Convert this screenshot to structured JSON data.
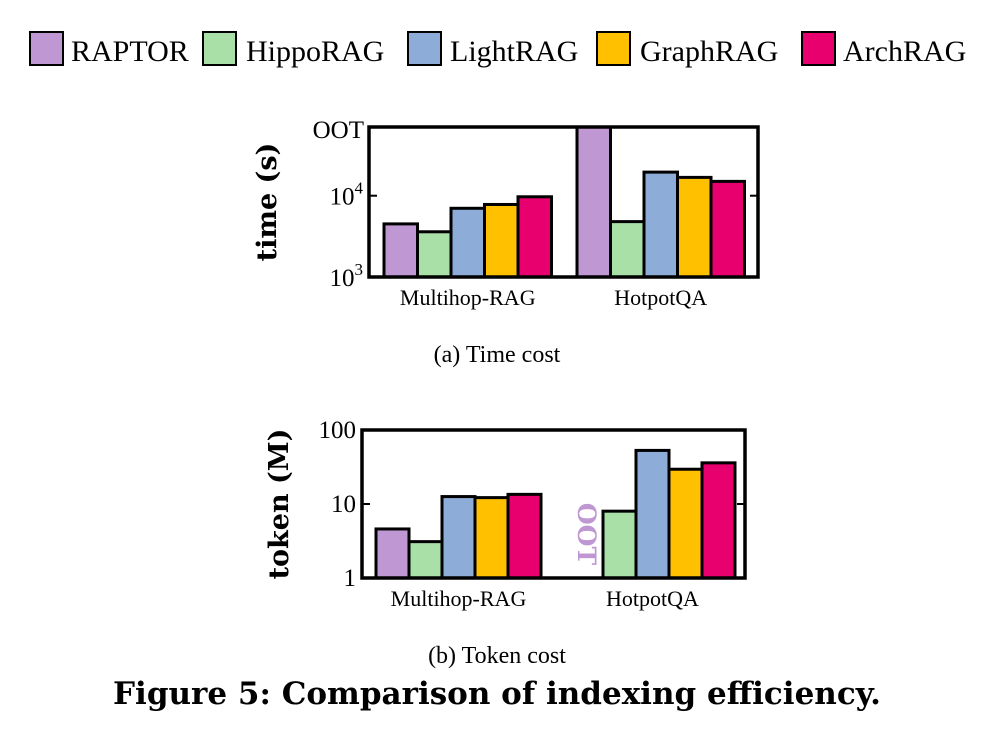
{
  "legend": [
    {
      "name": "RAPTOR",
      "color": "#bf98d3"
    },
    {
      "name": "HippoRAG",
      "color": "#a8e0a8"
    },
    {
      "name": "LightRAG",
      "color": "#8eacd8"
    },
    {
      "name": "GraphRAG",
      "color": "#ffc000"
    },
    {
      "name": "ArchRAG",
      "color": "#e8006e"
    }
  ],
  "chart_data": [
    {
      "id": "time",
      "type": "bar",
      "caption": "(a)  Time cost",
      "ylabel": "time (s)",
      "yscale": "log",
      "ylim": [
        1000,
        70000
      ],
      "yticks": [
        {
          "value": 1000,
          "base": "10",
          "exp": "3"
        },
        {
          "value": 10000,
          "base": "10",
          "exp": "4"
        }
      ],
      "top_label": "OOT",
      "categories": [
        "Multihop-RAG",
        "HotpotQA"
      ],
      "series": [
        {
          "name": "RAPTOR",
          "values": [
            4500,
            null
          ],
          "oot": [
            false,
            true
          ]
        },
        {
          "name": "HippoRAG",
          "values": [
            3600,
            4800
          ]
        },
        {
          "name": "LightRAG",
          "values": [
            7000,
            19500
          ]
        },
        {
          "name": "GraphRAG",
          "values": [
            7800,
            16800
          ]
        },
        {
          "name": "ArchRAG",
          "values": [
            9700,
            15000
          ]
        }
      ]
    },
    {
      "id": "token",
      "type": "bar",
      "caption": "(b)  Token cost",
      "ylabel": "token (M)",
      "yscale": "log",
      "ylim": [
        1,
        100
      ],
      "yticks": [
        {
          "value": 1,
          "label": "1"
        },
        {
          "value": 10,
          "label": "10"
        },
        {
          "value": 100,
          "label": "100"
        }
      ],
      "oot_label": "OOT",
      "categories": [
        "Multihop-RAG",
        "HotpotQA"
      ],
      "series": [
        {
          "name": "RAPTOR",
          "values": [
            4.6,
            null
          ],
          "oot": [
            false,
            true
          ]
        },
        {
          "name": "HippoRAG",
          "values": [
            3.1,
            8.0
          ]
        },
        {
          "name": "LightRAG",
          "values": [
            12.6,
            53
          ]
        },
        {
          "name": "GraphRAG",
          "values": [
            12.2,
            29.5
          ]
        },
        {
          "name": "ArchRAG",
          "values": [
            13.5,
            36
          ]
        }
      ]
    }
  ],
  "figure_caption": "Figure 5: Comparison of indexing efficiency."
}
